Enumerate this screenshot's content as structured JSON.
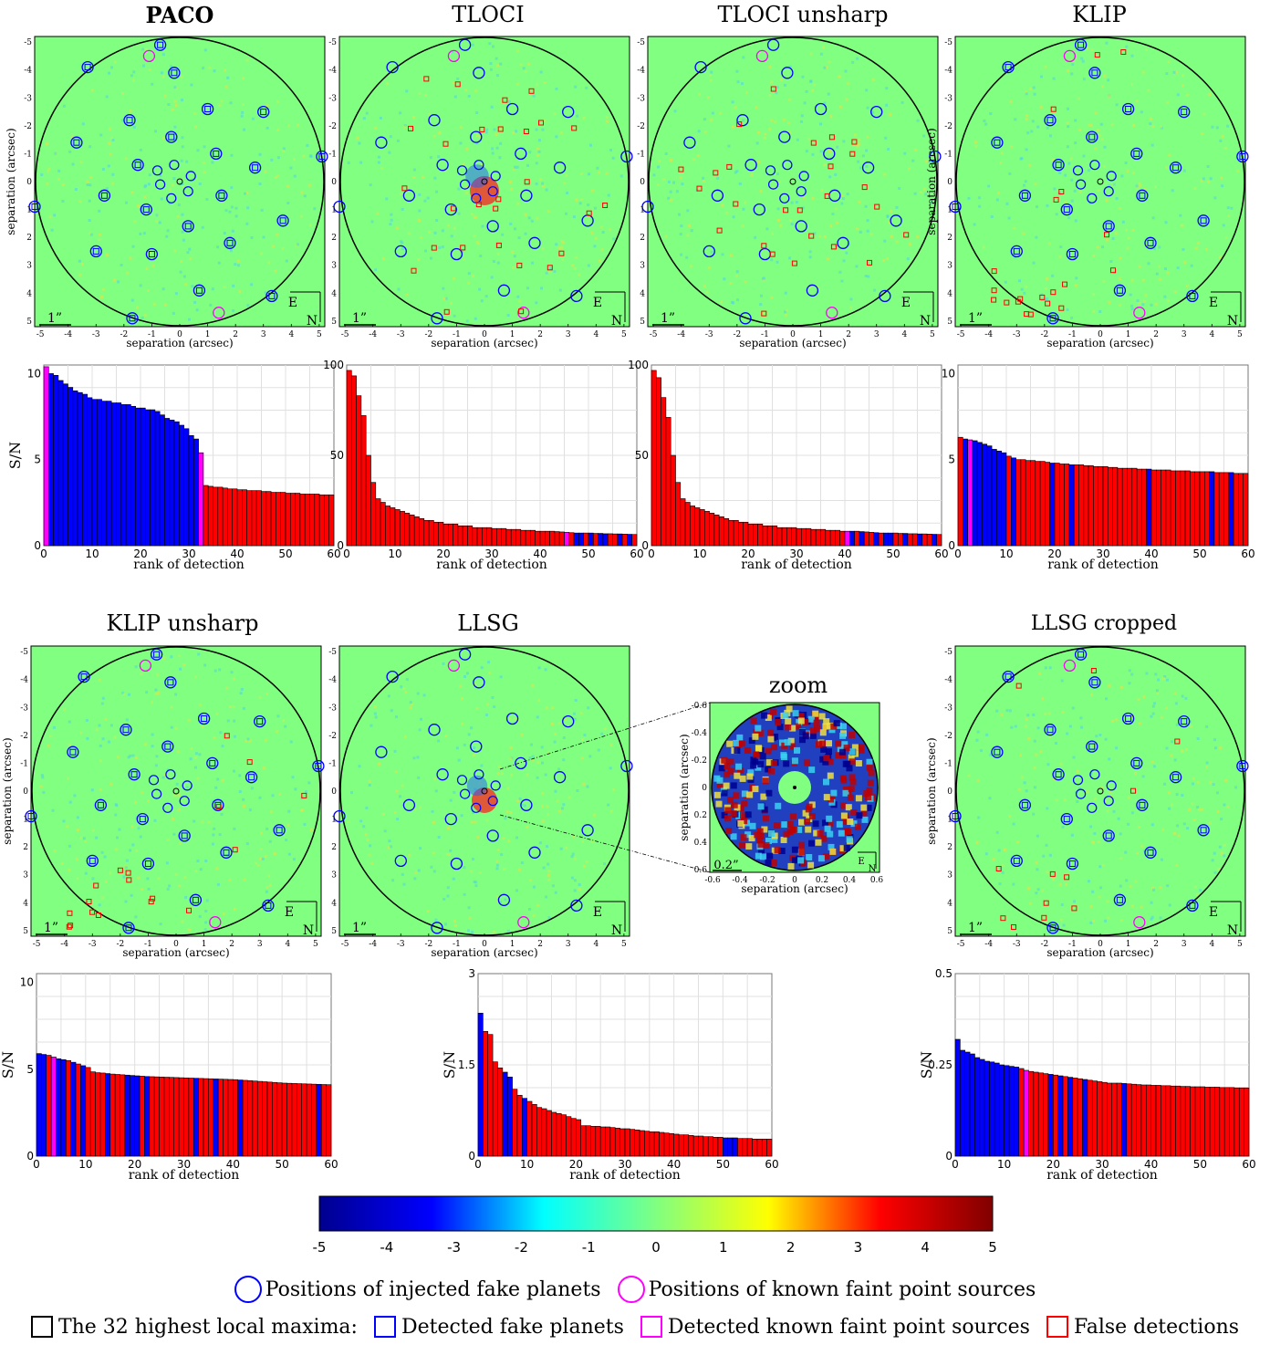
{
  "titles": {
    "paco": "PACO",
    "tloci": "TLOCI",
    "tloci_unsharp": "TLOCI unsharp",
    "klip": "KLIP",
    "klip_unsharp": "KLIP unsharp",
    "llsg": "LLSG",
    "zoom": "zoom",
    "llsg_cropped": "LLSG cropped"
  },
  "map_axes": {
    "xlabel": "separation (arcsec)",
    "ylabel": "separation (arcsec)",
    "ticks": [
      "-5",
      "-4",
      "-3",
      "-2",
      "-1",
      "0",
      "1",
      "2",
      "3",
      "4",
      "5"
    ],
    "scale_label": "1”",
    "compass_e": "E",
    "compass_n": "N"
  },
  "zoom_axes": {
    "xlabel": "separation (arcsec)",
    "ylabel": "separation (arcsec)",
    "ticks": [
      "-0.6",
      "-0.4",
      "-0.2",
      "0",
      "0.2",
      "0.4",
      "0.6"
    ],
    "scale_label": "0.2”",
    "compass_e": "E",
    "compass_n": "N"
  },
  "colorbar": {
    "colors": [
      "#00008f",
      "#0000ff",
      "#00ffff",
      "#80ff80",
      "#ffff00",
      "#ff0000",
      "#800000"
    ],
    "ticks": [
      "-5",
      "-4",
      "-3",
      "-2",
      "-1",
      "0",
      "1",
      "2",
      "3",
      "4",
      "5"
    ]
  },
  "legend": {
    "injected": "Positions of injected fake planets",
    "known": "Positions of known faint point sources",
    "highest": "The 32 highest local maxima:",
    "detected": "Detected fake planets",
    "detected_known": "Detected known faint point sources",
    "false": "False detections"
  },
  "colors": {
    "map_bg": "#80ff80",
    "fake_planet": "#0000ff",
    "known_source": "#ff00ff",
    "false_detection": "#ff0000"
  },
  "chart_data": [
    {
      "type": "bar",
      "panel": "PACO",
      "ylabel": "S/N",
      "xlabel": "rank of detection",
      "ylim": [
        0,
        10.5
      ],
      "yticks": [
        0,
        5,
        10
      ],
      "xlim": [
        0,
        60
      ],
      "xticks": [
        0,
        10,
        20,
        30,
        40,
        50,
        60
      ],
      "values": [
        10.4,
        10.0,
        9.9,
        9.6,
        9.4,
        9.2,
        9.0,
        8.9,
        8.8,
        8.6,
        8.5,
        8.5,
        8.4,
        8.4,
        8.3,
        8.3,
        8.2,
        8.2,
        8.1,
        8.0,
        8.0,
        7.9,
        7.9,
        7.8,
        7.6,
        7.4,
        7.3,
        7.2,
        7.0,
        6.8,
        6.4,
        6.2,
        5.4,
        3.5,
        3.45,
        3.4,
        3.4,
        3.35,
        3.3,
        3.3,
        3.25,
        3.25,
        3.2,
        3.2,
        3.2,
        3.15,
        3.15,
        3.1,
        3.1,
        3.1,
        3.05,
        3.05,
        3.05,
        3.0,
        3.0,
        3.0,
        3.0,
        2.95,
        2.95,
        2.95
      ],
      "colors": [
        "M",
        "B",
        "B",
        "B",
        "B",
        "B",
        "B",
        "B",
        "B",
        "B",
        "B",
        "B",
        "B",
        "B",
        "B",
        "B",
        "B",
        "B",
        "B",
        "B",
        "B",
        "B",
        "B",
        "B",
        "B",
        "B",
        "B",
        "B",
        "B",
        "B",
        "B",
        "B",
        "M",
        "R",
        "R",
        "R",
        "R",
        "R",
        "R",
        "R",
        "R",
        "R",
        "R",
        "R",
        "R",
        "R",
        "R",
        "R",
        "R",
        "R",
        "R",
        "R",
        "R",
        "R",
        "R",
        "R",
        "R",
        "R",
        "R",
        "R"
      ]
    },
    {
      "type": "bar",
      "panel": "TLOCI",
      "ylabel": "",
      "xlabel": "rank of detection",
      "ylim": [
        0,
        100
      ],
      "yticks": [
        0,
        50,
        100
      ],
      "xlim": [
        0,
        60
      ],
      "xticks": [
        0,
        10,
        20,
        30,
        40,
        50,
        60
      ],
      "values": [
        97,
        94,
        83,
        72,
        50,
        35,
        26,
        24,
        22,
        21,
        20,
        19,
        18,
        17,
        16,
        15,
        14,
        14,
        13,
        13,
        12,
        12,
        12,
        11,
        11,
        11,
        10,
        10,
        10,
        10,
        9.5,
        9.5,
        9.5,
        9,
        9,
        9,
        8.5,
        8.5,
        8.5,
        8,
        8,
        8,
        8,
        7.8,
        7.6,
        7.4,
        7.2,
        7,
        7,
        7,
        7,
        6.8,
        6.8,
        6.6,
        6.6,
        6.5,
        6.5,
        6.4,
        6.3,
        6.2
      ],
      "colors": [
        "R",
        "R",
        "R",
        "R",
        "R",
        "R",
        "R",
        "R",
        "R",
        "R",
        "R",
        "R",
        "R",
        "R",
        "R",
        "R",
        "R",
        "R",
        "R",
        "R",
        "R",
        "R",
        "R",
        "R",
        "R",
        "R",
        "R",
        "R",
        "R",
        "R",
        "R",
        "R",
        "R",
        "R",
        "R",
        "R",
        "R",
        "R",
        "R",
        "R",
        "R",
        "R",
        "R",
        "R",
        "R",
        "M",
        "R",
        "B",
        "B",
        "R",
        "B",
        "R",
        "B",
        "B",
        "R",
        "R",
        "B",
        "R",
        "B",
        "R"
      ]
    },
    {
      "type": "bar",
      "panel": "TLOCI unsharp",
      "ylabel": "",
      "xlabel": "rank of detection",
      "ylim": [
        0,
        100
      ],
      "yticks": [
        0,
        50,
        100
      ],
      "xlim": [
        0,
        60
      ],
      "xticks": [
        0,
        10,
        20,
        30,
        40,
        50,
        60
      ],
      "values": [
        97,
        93,
        82,
        71,
        50,
        35,
        26,
        24,
        22,
        21,
        20,
        19,
        18,
        17,
        16,
        15,
        14,
        14,
        13,
        13,
        12,
        12,
        12,
        11,
        11,
        11,
        10,
        10,
        10,
        10,
        9.5,
        9.5,
        9.5,
        9,
        9,
        9,
        8.5,
        8.5,
        8.5,
        8,
        8,
        8,
        8,
        7.8,
        7.6,
        7.4,
        7.2,
        7,
        7,
        7,
        7,
        6.8,
        6.8,
        6.6,
        6.6,
        6.5,
        6.5,
        6.4,
        6.3,
        6.2
      ],
      "colors": [
        "R",
        "R",
        "R",
        "R",
        "R",
        "R",
        "R",
        "R",
        "R",
        "R",
        "R",
        "R",
        "R",
        "R",
        "R",
        "R",
        "R",
        "R",
        "R",
        "R",
        "R",
        "R",
        "R",
        "R",
        "R",
        "R",
        "R",
        "R",
        "R",
        "R",
        "R",
        "R",
        "R",
        "R",
        "R",
        "R",
        "R",
        "R",
        "R",
        "R",
        "M",
        "B",
        "R",
        "B",
        "R",
        "R",
        "B",
        "R",
        "B",
        "B",
        "R",
        "R",
        "B",
        "R",
        "R",
        "B",
        "R",
        "R",
        "B",
        "R"
      ]
    },
    {
      "type": "bar",
      "panel": "KLIP",
      "ylabel": "",
      "xlabel": "rank of detection",
      "ylim": [
        0,
        10.5
      ],
      "yticks": [
        0,
        5,
        10
      ],
      "xlim": [
        0,
        60
      ],
      "xticks": [
        0,
        10,
        20,
        30,
        40,
        50,
        60
      ],
      "values": [
        6.3,
        6.2,
        6.15,
        6.1,
        6.0,
        5.9,
        5.8,
        5.6,
        5.5,
        5.4,
        5.2,
        5.1,
        5.0,
        5.0,
        4.95,
        4.95,
        4.9,
        4.9,
        4.85,
        4.8,
        4.8,
        4.75,
        4.75,
        4.7,
        4.7,
        4.7,
        4.65,
        4.65,
        4.6,
        4.6,
        4.6,
        4.55,
        4.55,
        4.5,
        4.5,
        4.5,
        4.5,
        4.45,
        4.45,
        4.45,
        4.4,
        4.4,
        4.4,
        4.4,
        4.35,
        4.35,
        4.35,
        4.35,
        4.3,
        4.3,
        4.3,
        4.3,
        4.3,
        4.25,
        4.25,
        4.25,
        4.25,
        4.2,
        4.2,
        4.2
      ],
      "colors": [
        "R",
        "B",
        "M",
        "B",
        "B",
        "B",
        "B",
        "B",
        "B",
        "B",
        "R",
        "B",
        "R",
        "R",
        "R",
        "R",
        "R",
        "R",
        "R",
        "B",
        "R",
        "R",
        "R",
        "B",
        "R",
        "R",
        "R",
        "R",
        "R",
        "R",
        "R",
        "R",
        "R",
        "R",
        "R",
        "R",
        "R",
        "R",
        "R",
        "B",
        "R",
        "R",
        "R",
        "R",
        "R",
        "R",
        "R",
        "R",
        "R",
        "R",
        "R",
        "R",
        "B",
        "R",
        "R",
        "R",
        "B",
        "R",
        "R",
        "R"
      ]
    },
    {
      "type": "bar",
      "panel": "KLIP unsharp",
      "ylabel": "S/N",
      "xlabel": "rank of detection",
      "ylim": [
        0,
        10.5
      ],
      "yticks": [
        0,
        5,
        10
      ],
      "xlim": [
        0,
        60
      ],
      "xticks": [
        0,
        10,
        20,
        30,
        40,
        50,
        60
      ],
      "values": [
        5.9,
        5.85,
        5.8,
        5.7,
        5.6,
        5.55,
        5.5,
        5.4,
        5.3,
        5.2,
        5.1,
        4.85,
        4.8,
        4.78,
        4.75,
        4.72,
        4.7,
        4.68,
        4.66,
        4.64,
        4.62,
        4.6,
        4.58,
        4.57,
        4.56,
        4.55,
        4.54,
        4.53,
        4.52,
        4.51,
        4.5,
        4.49,
        4.48,
        4.47,
        4.46,
        4.45,
        4.44,
        4.43,
        4.42,
        4.41,
        4.4,
        4.38,
        4.36,
        4.34,
        4.32,
        4.3,
        4.28,
        4.26,
        4.24,
        4.22,
        4.2,
        4.19,
        4.18,
        4.17,
        4.16,
        4.15,
        4.14,
        4.13,
        4.12,
        4.11
      ],
      "colors": [
        "B",
        "B",
        "R",
        "M",
        "B",
        "B",
        "R",
        "B",
        "R",
        "B",
        "R",
        "R",
        "R",
        "R",
        "B",
        "R",
        "R",
        "R",
        "B",
        "B",
        "B",
        "R",
        "B",
        "R",
        "R",
        "R",
        "R",
        "R",
        "R",
        "R",
        "R",
        "R",
        "B",
        "R",
        "R",
        "R",
        "B",
        "R",
        "R",
        "R",
        "R",
        "B",
        "R",
        "R",
        "R",
        "R",
        "R",
        "R",
        "R",
        "R",
        "R",
        "R",
        "R",
        "R",
        "R",
        "R",
        "R",
        "B",
        "R",
        "R"
      ]
    },
    {
      "type": "bar",
      "panel": "LLSG",
      "ylabel": "S/N",
      "xlabel": "rank of detection",
      "ylim": [
        0,
        3
      ],
      "yticks": [
        0,
        1.5,
        3
      ],
      "ytick_labels": [
        "0",
        "1.5",
        "3"
      ],
      "xlim": [
        0,
        60
      ],
      "xticks": [
        0,
        10,
        20,
        30,
        40,
        50,
        60
      ],
      "values": [
        2.35,
        2.05,
        2.0,
        1.55,
        1.45,
        1.38,
        1.3,
        1.1,
        1.0,
        0.95,
        0.9,
        0.85,
        0.8,
        0.78,
        0.75,
        0.72,
        0.7,
        0.68,
        0.65,
        0.62,
        0.6,
        0.5,
        0.5,
        0.49,
        0.49,
        0.48,
        0.48,
        0.47,
        0.46,
        0.45,
        0.45,
        0.44,
        0.43,
        0.42,
        0.41,
        0.4,
        0.4,
        0.39,
        0.38,
        0.37,
        0.36,
        0.35,
        0.35,
        0.34,
        0.33,
        0.33,
        0.32,
        0.32,
        0.31,
        0.31,
        0.3,
        0.3,
        0.3,
        0.29,
        0.29,
        0.29,
        0.28,
        0.28,
        0.28,
        0.28
      ],
      "colors": [
        "B",
        "R",
        "R",
        "R",
        "R",
        "B",
        "B",
        "R",
        "R",
        "B",
        "R",
        "R",
        "R",
        "R",
        "R",
        "R",
        "R",
        "R",
        "R",
        "R",
        "R",
        "R",
        "R",
        "R",
        "R",
        "R",
        "R",
        "R",
        "R",
        "R",
        "R",
        "R",
        "R",
        "R",
        "R",
        "R",
        "R",
        "R",
        "R",
        "R",
        "R",
        "R",
        "R",
        "R",
        "R",
        "R",
        "R",
        "R",
        "R",
        "R",
        "B",
        "B",
        "B",
        "R",
        "R",
        "R",
        "R",
        "R",
        "R",
        "R"
      ]
    },
    {
      "type": "bar",
      "panel": "LLSG cropped",
      "ylabel": "S/N",
      "xlabel": "rank of detection",
      "ylim": [
        0,
        0.5
      ],
      "yticks": [
        0,
        0.25,
        0.5
      ],
      "ytick_labels": [
        "0",
        "0.25",
        "0.5"
      ],
      "xlim": [
        0,
        60
      ],
      "xticks": [
        0,
        10,
        20,
        30,
        40,
        50,
        60
      ],
      "values": [
        0.32,
        0.29,
        0.285,
        0.28,
        0.27,
        0.265,
        0.26,
        0.258,
        0.255,
        0.25,
        0.248,
        0.246,
        0.244,
        0.24,
        0.235,
        0.232,
        0.23,
        0.228,
        0.226,
        0.224,
        0.222,
        0.22,
        0.218,
        0.216,
        0.214,
        0.212,
        0.21,
        0.208,
        0.206,
        0.204,
        0.202,
        0.2,
        0.2,
        0.2,
        0.199,
        0.198,
        0.197,
        0.196,
        0.195,
        0.195,
        0.194,
        0.194,
        0.193,
        0.193,
        0.192,
        0.192,
        0.191,
        0.191,
        0.19,
        0.19,
        0.19,
        0.189,
        0.189,
        0.189,
        0.188,
        0.188,
        0.188,
        0.187,
        0.187,
        0.187
      ],
      "colors": [
        "B",
        "B",
        "B",
        "B",
        "B",
        "B",
        "B",
        "B",
        "B",
        "B",
        "B",
        "B",
        "B",
        "R",
        "M",
        "R",
        "R",
        "R",
        "R",
        "B",
        "R",
        "B",
        "R",
        "B",
        "R",
        "R",
        "B",
        "R",
        "R",
        "R",
        "R",
        "R",
        "R",
        "R",
        "B",
        "R",
        "R",
        "R",
        "R",
        "R",
        "R",
        "R",
        "R",
        "R",
        "R",
        "R",
        "R",
        "R",
        "R",
        "R",
        "R",
        "R",
        "R",
        "R",
        "R",
        "R",
        "R",
        "R",
        "R",
        "R"
      ]
    }
  ],
  "maps": {
    "planets": [
      [
        -0.7,
        -4.9
      ],
      [
        -3.3,
        -4.1
      ],
      [
        -0.2,
        -3.9
      ],
      [
        -1.8,
        -2.2
      ],
      [
        1.0,
        -2.6
      ],
      [
        3.0,
        -2.5
      ],
      [
        -3.7,
        -1.4
      ],
      [
        -0.3,
        -1.6
      ],
      [
        1.3,
        -1.0
      ],
      [
        -1.5,
        -0.6
      ],
      [
        2.7,
        -0.5
      ],
      [
        5.1,
        -0.9
      ],
      [
        -2.7,
        0.5
      ],
      [
        -1.2,
        1.0
      ],
      [
        0.3,
        1.6
      ],
      [
        1.5,
        0.5
      ],
      [
        3.7,
        1.4
      ],
      [
        -5.2,
        0.9
      ],
      [
        -3.0,
        2.5
      ],
      [
        -1.0,
        2.6
      ],
      [
        1.8,
        2.2
      ],
      [
        0.7,
        3.9
      ],
      [
        3.3,
        4.1
      ],
      [
        -1.7,
        4.9
      ]
    ],
    "ring": [
      [
        -0.8,
        -0.4
      ],
      [
        -0.2,
        -0.6
      ],
      [
        0.4,
        -0.2
      ],
      [
        0.3,
        0.35
      ],
      [
        -0.3,
        0.6
      ],
      [
        -0.7,
        0.1
      ]
    ],
    "known": [
      [
        -1.1,
        -4.5
      ],
      [
        1.4,
        4.7
      ]
    ]
  }
}
